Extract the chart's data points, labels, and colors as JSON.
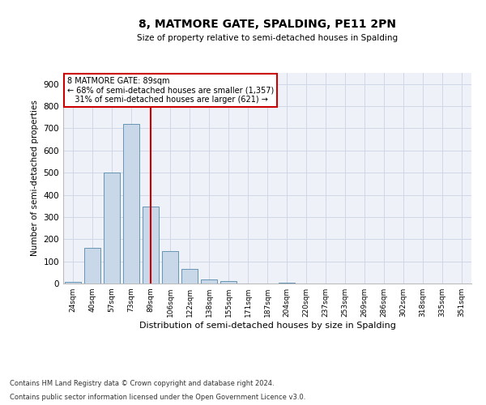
{
  "title": "8, MATMORE GATE, SPALDING, PE11 2PN",
  "subtitle": "Size of property relative to semi-detached houses in Spalding",
  "xlabel": "Distribution of semi-detached houses by size in Spalding",
  "ylabel": "Number of semi-detached properties",
  "categories": [
    "24sqm",
    "40sqm",
    "57sqm",
    "73sqm",
    "89sqm",
    "106sqm",
    "122sqm",
    "138sqm",
    "155sqm",
    "171sqm",
    "187sqm",
    "204sqm",
    "220sqm",
    "237sqm",
    "253sqm",
    "269sqm",
    "286sqm",
    "302sqm",
    "318sqm",
    "335sqm",
    "351sqm"
  ],
  "values": [
    7,
    162,
    500,
    718,
    347,
    145,
    67,
    20,
    11,
    0,
    0,
    3,
    0,
    0,
    0,
    0,
    0,
    0,
    0,
    0,
    0
  ],
  "bar_color": "#c8d8e8",
  "bar_edge_color": "#5588aa",
  "highlight_index": 4,
  "highlight_color": "#cc0000",
  "ylim": [
    0,
    950
  ],
  "yticks": [
    0,
    100,
    200,
    300,
    400,
    500,
    600,
    700,
    800,
    900
  ],
  "property_label": "8 MATMORE GATE: 89sqm",
  "smaller_pct": "68%",
  "smaller_count": "1,357",
  "larger_pct": "31%",
  "larger_count": "621",
  "annotation_box_color": "#ffffff",
  "annotation_box_edge": "#cc0000",
  "footer_line1": "Contains HM Land Registry data © Crown copyright and database right 2024.",
  "footer_line2": "Contains public sector information licensed under the Open Government Licence v3.0.",
  "grid_color": "#d0d8e8",
  "bg_color": "#eef2f8"
}
